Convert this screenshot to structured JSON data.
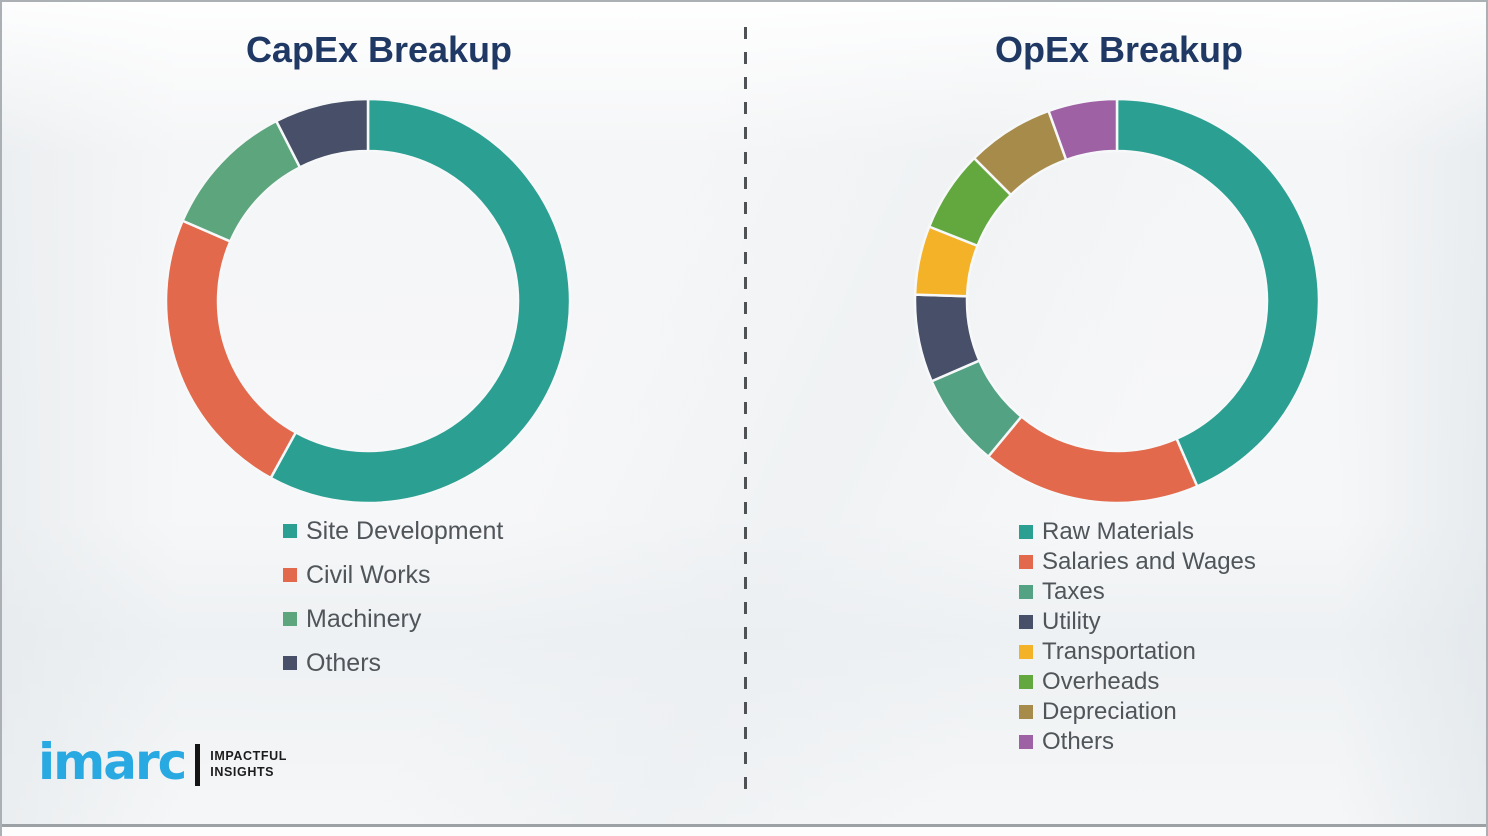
{
  "page": {
    "description": "Two donut charts comparing capital expenditure and operating expenditure breakups"
  },
  "colors": {
    "title_text": "#1f3864",
    "legend_text": "#50555a",
    "divider": "#4f5254",
    "bottom_rule": "#9ba1a4",
    "background": "#f6f7f8"
  },
  "logo": {
    "brand": "imarc",
    "tagline_line1": "IMPACTFUL",
    "tagline_line2": "INSIGHTS",
    "brand_color": "#29a9e2"
  },
  "chart_data": [
    {
      "type": "pie",
      "subtype": "donut",
      "title": "CapEx Breakup",
      "labels": [
        "Site Development",
        "Civil Works",
        "Machinery",
        "Others"
      ],
      "values": [
        58,
        23.5,
        11,
        7.5
      ],
      "colors": [
        "#2ba092",
        "#e2694b",
        "#5da57d",
        "#475068"
      ],
      "start_angle_deg": 0,
      "direction": "clockwise",
      "legend_position": "below",
      "data_labels": false
    },
    {
      "type": "pie",
      "subtype": "donut",
      "title": "OpEx Breakup",
      "labels": [
        "Raw Materials",
        "Salaries and Wages",
        "Taxes",
        "Utility",
        "Transportation",
        "Overheads",
        "Depreciation",
        "Others"
      ],
      "values": [
        43.5,
        17.5,
        7.5,
        7,
        5.5,
        6.5,
        7,
        5.5
      ],
      "colors": [
        "#2ba092",
        "#e2694b",
        "#52a283",
        "#475068",
        "#f4b229",
        "#63a83e",
        "#a78b4b",
        "#9d61a4"
      ],
      "start_angle_deg": 0,
      "direction": "clockwise",
      "legend_position": "below",
      "data_labels": false
    }
  ]
}
